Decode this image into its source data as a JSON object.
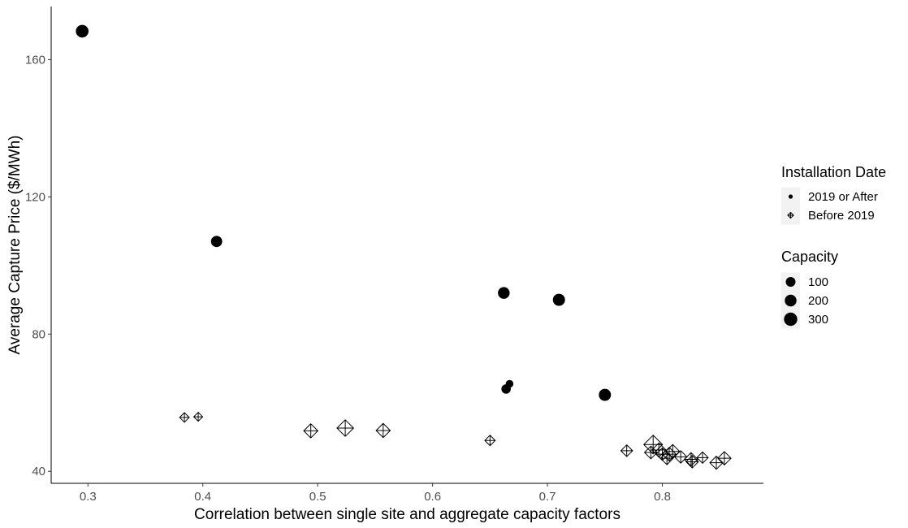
{
  "chart_data": {
    "type": "scatter",
    "title": "",
    "xlabel": "Correlation between single site and aggregate capacity factors",
    "ylabel": "Average Capture Price ($/MWh)",
    "xlim": [
      0.268,
      0.888
    ],
    "ylim": [
      36.5,
      175.5
    ],
    "x_ticks": [
      0.3,
      0.4,
      0.5,
      0.6,
      0.7,
      0.8
    ],
    "x_tick_labels": [
      "0.3",
      "0.4",
      "0.5",
      "0.6",
      "0.7",
      "0.8"
    ],
    "y_ticks": [
      40,
      80,
      120,
      160
    ],
    "y_tick_labels": [
      "40",
      "80",
      "120",
      "160"
    ],
    "grid": false,
    "legend_position": "right",
    "shape_legend": {
      "title": "Installation Date",
      "entries": [
        {
          "label": "2019 or After",
          "shape": "circle"
        },
        {
          "label": "Before 2019",
          "shape": "diamond-plus"
        }
      ]
    },
    "size_legend": {
      "title": "Capacity",
      "entries": [
        {
          "label": "100",
          "value": 100
        },
        {
          "label": "200",
          "value": 200
        },
        {
          "label": "300",
          "value": 300
        }
      ]
    },
    "series": [
      {
        "name": "2019 or After",
        "shape": "circle",
        "points": [
          {
            "x": 0.295,
            "y": 168.3,
            "capacity": 300
          },
          {
            "x": 0.412,
            "y": 107.0,
            "capacity": 200
          },
          {
            "x": 0.662,
            "y": 92.0,
            "capacity": 230
          },
          {
            "x": 0.71,
            "y": 90.0,
            "capacity": 260
          },
          {
            "x": 0.664,
            "y": 64.0,
            "capacity": 100
          },
          {
            "x": 0.667,
            "y": 65.5,
            "capacity": 40
          },
          {
            "x": 0.75,
            "y": 62.3,
            "capacity": 260
          }
        ]
      },
      {
        "name": "Before 2019",
        "shape": "diamond-plus",
        "points": [
          {
            "x": 0.384,
            "y": 55.7,
            "capacity": 25
          },
          {
            "x": 0.396,
            "y": 55.9,
            "capacity": 15
          },
          {
            "x": 0.494,
            "y": 51.8,
            "capacity": 150
          },
          {
            "x": 0.524,
            "y": 52.6,
            "capacity": 260
          },
          {
            "x": 0.557,
            "y": 51.9,
            "capacity": 150
          },
          {
            "x": 0.65,
            "y": 49.0,
            "capacity": 40
          },
          {
            "x": 0.769,
            "y": 46.0,
            "capacity": 70
          },
          {
            "x": 0.79,
            "y": 45.5,
            "capacity": 100
          },
          {
            "x": 0.792,
            "y": 47.8,
            "capacity": 380
          },
          {
            "x": 0.797,
            "y": 46.2,
            "capacity": 150
          },
          {
            "x": 0.8,
            "y": 45.0,
            "capacity": 90
          },
          {
            "x": 0.804,
            "y": 43.8,
            "capacity": 100
          },
          {
            "x": 0.806,
            "y": 45.0,
            "capacity": 130
          },
          {
            "x": 0.809,
            "y": 45.8,
            "capacity": 140
          },
          {
            "x": 0.816,
            "y": 44.2,
            "capacity": 90
          },
          {
            "x": 0.825,
            "y": 43.5,
            "capacity": 120
          },
          {
            "x": 0.826,
            "y": 42.8,
            "capacity": 90
          },
          {
            "x": 0.835,
            "y": 44.0,
            "capacity": 60
          },
          {
            "x": 0.847,
            "y": 42.5,
            "capacity": 110
          },
          {
            "x": 0.854,
            "y": 43.8,
            "capacity": 120
          }
        ]
      }
    ]
  }
}
